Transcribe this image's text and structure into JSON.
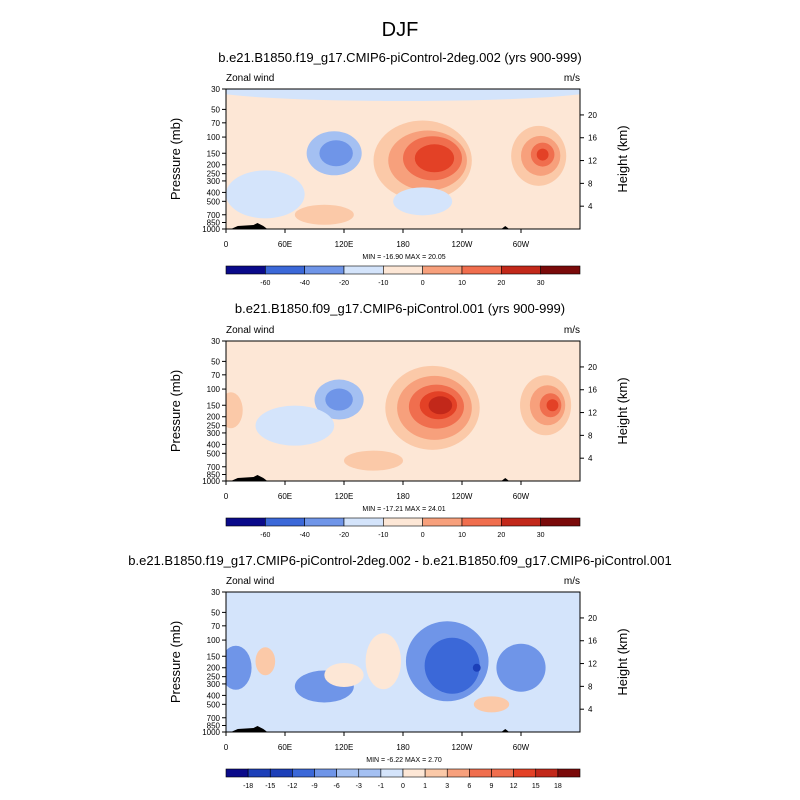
{
  "figure": {
    "title": "DJF",
    "accent_colors": {
      "neg_scale": [
        "#0a0a8a",
        "#1c3fb8",
        "#3b68d8",
        "#6f95e8",
        "#a4c0f2",
        "#d4e4fb"
      ],
      "pos_scale": [
        "#fde7d6",
        "#fbc9a8",
        "#f7a07c",
        "#f06e4e",
        "#e34126",
        "#c2281a",
        "#7a0a0a"
      ]
    }
  },
  "chart_data": [
    {
      "type": "contour",
      "title": "b.e21.B1850.f19_g17.CMIP6-piControl-2deg.002 (yrs 900-999)",
      "variable_label": "Zonal wind",
      "units_label": "m/s",
      "ylabel": "Pressure (mb)",
      "ylabel_right": "Height (km)",
      "x_ticks": [
        "0",
        "60E",
        "120E",
        "180",
        "120W",
        "60W"
      ],
      "y_ticks": [
        "30",
        "50",
        "70",
        "100",
        "150",
        "200",
        "250",
        "300",
        "400",
        "500",
        "700",
        "850",
        "1000"
      ],
      "height_ticks": [
        "20",
        "16",
        "12",
        "8",
        "4"
      ],
      "stats_text": "MIN = -16.90  MAX =  20.05",
      "min": -16.9,
      "max": 20.05,
      "colorbar_labels": [
        "-60",
        "-40",
        "-20",
        "-10",
        "0",
        "10",
        "20",
        "30"
      ]
    },
    {
      "type": "contour",
      "title": "b.e21.B1850.f09_g17.CMIP6-piControl.001 (yrs 900-999)",
      "variable_label": "Zonal wind",
      "units_label": "m/s",
      "ylabel": "Pressure (mb)",
      "ylabel_right": "Height (km)",
      "x_ticks": [
        "0",
        "60E",
        "120E",
        "180",
        "120W",
        "60W"
      ],
      "y_ticks": [
        "30",
        "50",
        "70",
        "100",
        "150",
        "200",
        "250",
        "300",
        "400",
        "500",
        "700",
        "850",
        "1000"
      ],
      "height_ticks": [
        "20",
        "16",
        "12",
        "8",
        "4"
      ],
      "stats_text": "MIN = -17.21  MAX =  24.01",
      "min": -17.21,
      "max": 24.01,
      "colorbar_labels": [
        "-60",
        "-40",
        "-20",
        "-10",
        "0",
        "10",
        "20",
        "30"
      ]
    },
    {
      "type": "contour",
      "title": "b.e21.B1850.f19_g17.CMIP6-piControl-2deg.002 - b.e21.B1850.f09_g17.CMIP6-piControl.001",
      "variable_label": "Zonal wind",
      "units_label": "m/s",
      "ylabel": "Pressure (mb)",
      "ylabel_right": "Height (km)",
      "x_ticks": [
        "0",
        "60E",
        "120E",
        "180",
        "120W",
        "60W"
      ],
      "y_ticks": [
        "30",
        "50",
        "70",
        "100",
        "150",
        "200",
        "250",
        "300",
        "400",
        "500",
        "700",
        "850",
        "1000"
      ],
      "height_ticks": [
        "20",
        "16",
        "12",
        "8",
        "4"
      ],
      "stats_text": "MIN = -6.22  MAX =  2.70",
      "min": -6.22,
      "max": 2.7,
      "colorbar_labels": [
        "-18",
        "-15",
        "-12",
        "-9",
        "-6",
        "-3",
        "-1",
        "0",
        "1",
        "3",
        "6",
        "9",
        "12",
        "15",
        "18"
      ]
    }
  ]
}
